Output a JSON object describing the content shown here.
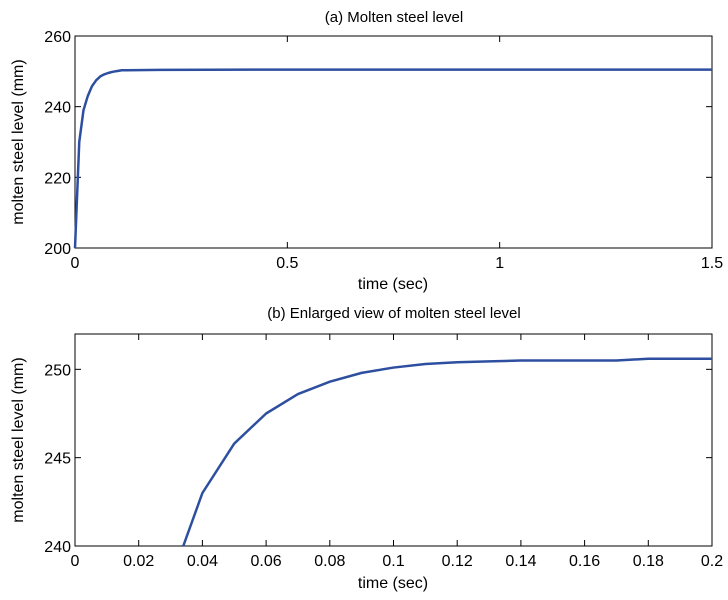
{
  "chart_data": [
    {
      "type": "line",
      "title": "(a) Molten steel level",
      "xlabel": "time (sec)",
      "ylabel": "molten steel level (mm)",
      "xlim": [
        0,
        1.5
      ],
      "ylim": [
        200,
        260
      ],
      "xticks": [
        0,
        0.5,
        1,
        1.5
      ],
      "xtick_labels": [
        "0",
        "0.5",
        "1",
        "1.5"
      ],
      "yticks": [
        200,
        220,
        240,
        260
      ],
      "ytick_labels": [
        "200",
        "220",
        "240",
        "260"
      ],
      "grid": false,
      "legend": "none",
      "series": [
        {
          "color": "#2e4fa0",
          "x": [
            0,
            0.01,
            0.02,
            0.03,
            0.04,
            0.05,
            0.06,
            0.07,
            0.08,
            0.09,
            0.1,
            0.11,
            0.2,
            0.5,
            1.0,
            1.5
          ],
          "y": [
            200,
            230,
            239,
            243,
            245.8,
            247.5,
            248.6,
            249.2,
            249.6,
            249.9,
            250.1,
            250.3,
            250.4,
            250.5,
            250.5,
            250.5
          ]
        }
      ]
    },
    {
      "type": "line",
      "title": "(b) Enlarged view of molten steel level",
      "xlabel": "time (sec)",
      "ylabel": "molten steel level (mm)",
      "xlim": [
        0,
        0.2
      ],
      "ylim": [
        240,
        252
      ],
      "xticks": [
        0,
        0.02,
        0.04,
        0.06,
        0.08,
        0.1,
        0.12,
        0.14,
        0.16,
        0.18,
        0.2
      ],
      "xtick_labels": [
        "0",
        "0.02",
        "0.04",
        "0.06",
        "0.08",
        "0.1",
        "0.12",
        "0.14",
        "0.16",
        "0.18",
        "0.2"
      ],
      "yticks": [
        240,
        245,
        250
      ],
      "ytick_labels": [
        "240",
        "245",
        "250"
      ],
      "grid": false,
      "legend": "none",
      "series": [
        {
          "color": "#2e4fa0",
          "x": [
            0.034,
            0.04,
            0.05,
            0.06,
            0.07,
            0.08,
            0.09,
            0.1,
            0.11,
            0.12,
            0.13,
            0.14,
            0.15,
            0.16,
            0.17,
            0.18,
            0.19,
            0.2
          ],
          "y": [
            240,
            243.0,
            245.8,
            247.5,
            248.6,
            249.3,
            249.8,
            250.1,
            250.3,
            250.4,
            250.45,
            250.5,
            250.5,
            250.5,
            250.5,
            250.6,
            250.6,
            250.6
          ]
        }
      ]
    }
  ]
}
